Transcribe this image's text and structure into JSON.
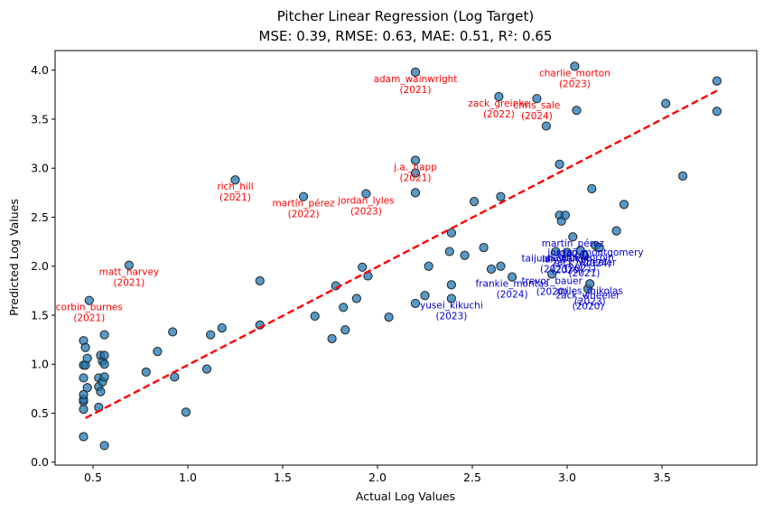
{
  "chart_data": {
    "type": "scatter",
    "title": "Pitcher Linear Regression (Log Target)",
    "subtitle": "MSE: 0.39, RMSE: 0.63, MAE: 0.51, R²: 0.65",
    "xlabel": "Actual Log Values",
    "ylabel": "Predicted Log Values",
    "xlim": [
      0.3,
      4.0
    ],
    "ylim": [
      -0.03,
      4.2
    ],
    "x_ticks": [
      "0.5",
      "1.0",
      "1.5",
      "2.0",
      "2.5",
      "3.0",
      "3.5"
    ],
    "x_tick_values": [
      0.5,
      1.0,
      1.5,
      2.0,
      2.5,
      3.0,
      3.5
    ],
    "y_ticks": [
      "0.0",
      "0.5",
      "1.0",
      "1.5",
      "2.0",
      "2.5",
      "3.0",
      "3.5",
      "4.0"
    ],
    "y_tick_values": [
      0.0,
      0.5,
      1.0,
      1.5,
      2.0,
      2.5,
      3.0,
      3.5,
      4.0
    ],
    "grid": false,
    "point_color": "#1f77b4",
    "reference_line": {
      "style": "dashed",
      "color": "#ff0000",
      "points": [
        [
          0.46,
          0.45
        ],
        [
          3.79,
          3.79
        ]
      ]
    },
    "points": [
      [
        0.45,
        0.26
      ],
      [
        0.45,
        0.54
      ],
      [
        0.45,
        0.62
      ],
      [
        0.45,
        0.64
      ],
      [
        0.45,
        0.69
      ],
      [
        0.45,
        0.86
      ],
      [
        0.45,
        0.99
      ],
      [
        0.45,
        1.24
      ],
      [
        0.46,
        1.17
      ],
      [
        0.46,
        0.99
      ],
      [
        0.47,
        0.76
      ],
      [
        0.47,
        1.06
      ],
      [
        0.48,
        1.65
      ],
      [
        0.53,
        0.56
      ],
      [
        0.53,
        0.77
      ],
      [
        0.53,
        0.86
      ],
      [
        0.54,
        1.09
      ],
      [
        0.54,
        0.72
      ],
      [
        0.55,
        1.03
      ],
      [
        0.55,
        0.82
      ],
      [
        0.56,
        0.87
      ],
      [
        0.56,
        1.0
      ],
      [
        0.56,
        1.09
      ],
      [
        0.56,
        1.3
      ],
      [
        0.56,
        0.17
      ],
      [
        0.69,
        2.01
      ],
      [
        0.78,
        0.92
      ],
      [
        0.84,
        1.13
      ],
      [
        0.92,
        1.33
      ],
      [
        0.93,
        0.87
      ],
      [
        0.99,
        0.51
      ],
      [
        1.1,
        0.95
      ],
      [
        1.12,
        1.3
      ],
      [
        1.18,
        1.37
      ],
      [
        1.25,
        2.88
      ],
      [
        1.38,
        1.4
      ],
      [
        1.38,
        1.85
      ],
      [
        1.61,
        2.71
      ],
      [
        1.67,
        1.49
      ],
      [
        1.76,
        1.26
      ],
      [
        1.78,
        1.8
      ],
      [
        1.82,
        1.58
      ],
      [
        1.83,
        1.35
      ],
      [
        1.89,
        1.67
      ],
      [
        1.92,
        1.99
      ],
      [
        1.94,
        2.74
      ],
      [
        1.95,
        1.9
      ],
      [
        2.06,
        1.48
      ],
      [
        2.2,
        3.98
      ],
      [
        2.2,
        3.08
      ],
      [
        2.2,
        2.95
      ],
      [
        2.2,
        2.75
      ],
      [
        2.2,
        1.62
      ],
      [
        2.25,
        1.7
      ],
      [
        2.27,
        2.0
      ],
      [
        2.38,
        2.15
      ],
      [
        2.39,
        1.81
      ],
      [
        2.39,
        1.67
      ],
      [
        2.39,
        2.34
      ],
      [
        2.46,
        2.11
      ],
      [
        2.51,
        2.66
      ],
      [
        2.56,
        2.19
      ],
      [
        2.6,
        1.97
      ],
      [
        2.64,
        3.73
      ],
      [
        2.65,
        2.71
      ],
      [
        2.65,
        2.0
      ],
      [
        2.71,
        1.89
      ],
      [
        2.84,
        3.71
      ],
      [
        2.89,
        3.43
      ],
      [
        2.92,
        1.92
      ],
      [
        2.94,
        2.15
      ],
      [
        2.96,
        3.04
      ],
      [
        2.96,
        2.52
      ],
      [
        2.97,
        2.46
      ],
      [
        2.99,
        2.52
      ],
      [
        3.0,
        2.14
      ],
      [
        3.03,
        2.3
      ],
      [
        3.04,
        4.04
      ],
      [
        3.05,
        3.59
      ],
      [
        3.07,
        2.16
      ],
      [
        3.09,
        2.11
      ],
      [
        3.11,
        1.77
      ],
      [
        3.12,
        1.82
      ],
      [
        3.13,
        2.79
      ],
      [
        3.15,
        2.21
      ],
      [
        3.17,
        2.19
      ],
      [
        3.26,
        2.36
      ],
      [
        3.3,
        2.63
      ],
      [
        3.52,
        3.66
      ],
      [
        3.61,
        2.92
      ],
      [
        3.79,
        3.89
      ],
      [
        3.79,
        3.58
      ]
    ],
    "annotations": [
      {
        "text": [
          "adam_wainwright",
          "(2021)"
        ],
        "x": 2.2,
        "y": 3.98,
        "color": "#ff0000"
      },
      {
        "text": [
          "charlie_morton",
          "(2023)"
        ],
        "x": 3.04,
        "y": 4.04,
        "color": "#ff0000"
      },
      {
        "text": [
          "zack_greinke",
          "(2022)"
        ],
        "x": 2.64,
        "y": 3.73,
        "color": "#ff0000"
      },
      {
        "text": [
          "chris_sale",
          "(2024)"
        ],
        "x": 2.84,
        "y": 3.71,
        "color": "#ff0000"
      },
      {
        "text": [
          "j.a._happ",
          "(2021)"
        ],
        "x": 2.2,
        "y": 3.08,
        "color": "#ff0000"
      },
      {
        "text": [
          "rich_hill",
          "(2021)"
        ],
        "x": 1.25,
        "y": 2.88,
        "color": "#ff0000"
      },
      {
        "text": [
          "martín_pérez",
          "(2022)"
        ],
        "x": 1.61,
        "y": 2.71,
        "color": "#ff0000"
      },
      {
        "text": [
          "jordan_lyles",
          "(2023)"
        ],
        "x": 1.94,
        "y": 2.74,
        "color": "#ff0000"
      },
      {
        "text": [
          "matt_harvey",
          "(2021)"
        ],
        "x": 0.69,
        "y": 2.01,
        "color": "#ff0000"
      },
      {
        "text": [
          "corbin_burnes",
          "(2021)"
        ],
        "x": 0.48,
        "y": 1.65,
        "color": "#ff0000"
      },
      {
        "text": [
          "jordan_montgomery",
          "(2024)"
        ],
        "x": 3.15,
        "y": 2.21,
        "color": "#0000cd"
      },
      {
        "text": [
          "martín_pérez",
          "(2024)"
        ],
        "x": 3.03,
        "y": 2.3,
        "color": "#0000cd"
      },
      {
        "text": [
          "patrick_corbin",
          "(2021)"
        ],
        "x": 3.07,
        "y": 2.16,
        "color": "#0000cd"
      },
      {
        "text": [
          "zack_wheeler",
          "(2021)"
        ],
        "x": 3.09,
        "y": 2.11,
        "color": "#0000cd"
      },
      {
        "text": [
          "taijuan_walker",
          "(2023)"
        ],
        "x": 2.94,
        "y": 2.15,
        "color": "#0000cd"
      },
      {
        "text": [
          "lance_lynn",
          "(2020)"
        ],
        "x": 3.0,
        "y": 2.14,
        "color": "#0000cd"
      },
      {
        "text": [
          "trevor_bauer",
          "(2020)"
        ],
        "x": 2.92,
        "y": 1.92,
        "color": "#0000cd"
      },
      {
        "text": [
          "frankie_montas",
          "(2024)"
        ],
        "x": 2.71,
        "y": 1.89,
        "color": "#0000cd"
      },
      {
        "text": [
          "miles_mikolas",
          "(2023)"
        ],
        "x": 3.12,
        "y": 1.82,
        "color": "#0000cd"
      },
      {
        "text": [
          "zack_wheeler",
          "(2020)"
        ],
        "x": 3.11,
        "y": 1.77,
        "color": "#0000cd"
      },
      {
        "text": [
          "yusei_kikuchi",
          "(2023)"
        ],
        "x": 2.39,
        "y": 1.67,
        "color": "#0000cd"
      }
    ]
  }
}
